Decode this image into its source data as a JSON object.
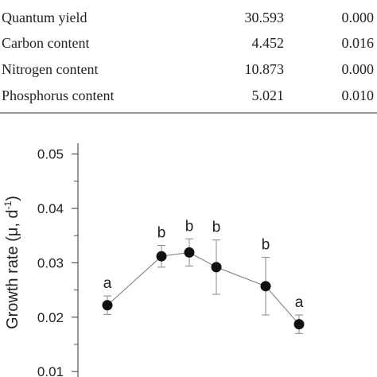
{
  "table": {
    "rows": [
      [
        "Quantum yield",
        "30.593",
        "0.000"
      ],
      [
        "Carbon content",
        "4.452",
        "0.016"
      ],
      [
        "Nitrogen content",
        "10.873",
        "0.000"
      ],
      [
        "Phosphorus content",
        "5.021",
        "0.010"
      ]
    ]
  },
  "chart_data": {
    "type": "scatter",
    "y_label": {
      "text": "Growth rate (μ, d",
      "sup": "-1",
      "end": ")"
    },
    "categories": [
      null,
      null,
      null,
      null,
      null,
      null
    ],
    "values": [
      0.0222,
      0.0312,
      0.0319,
      0.0292,
      0.0257,
      0.0187
    ],
    "errors": [
      0.0017,
      0.002,
      0.0025,
      0.005,
      0.0053,
      0.0017
    ],
    "letters": [
      "a",
      "b",
      "b",
      "b",
      "b",
      "a"
    ],
    "color": "#111111",
    "ylim": [
      0.009,
      0.052
    ],
    "yticks": [
      0.01,
      0.02,
      0.03,
      0.04,
      0.05
    ],
    "yminorticks": [
      0.015,
      0.025,
      0.035,
      0.045
    ]
  }
}
